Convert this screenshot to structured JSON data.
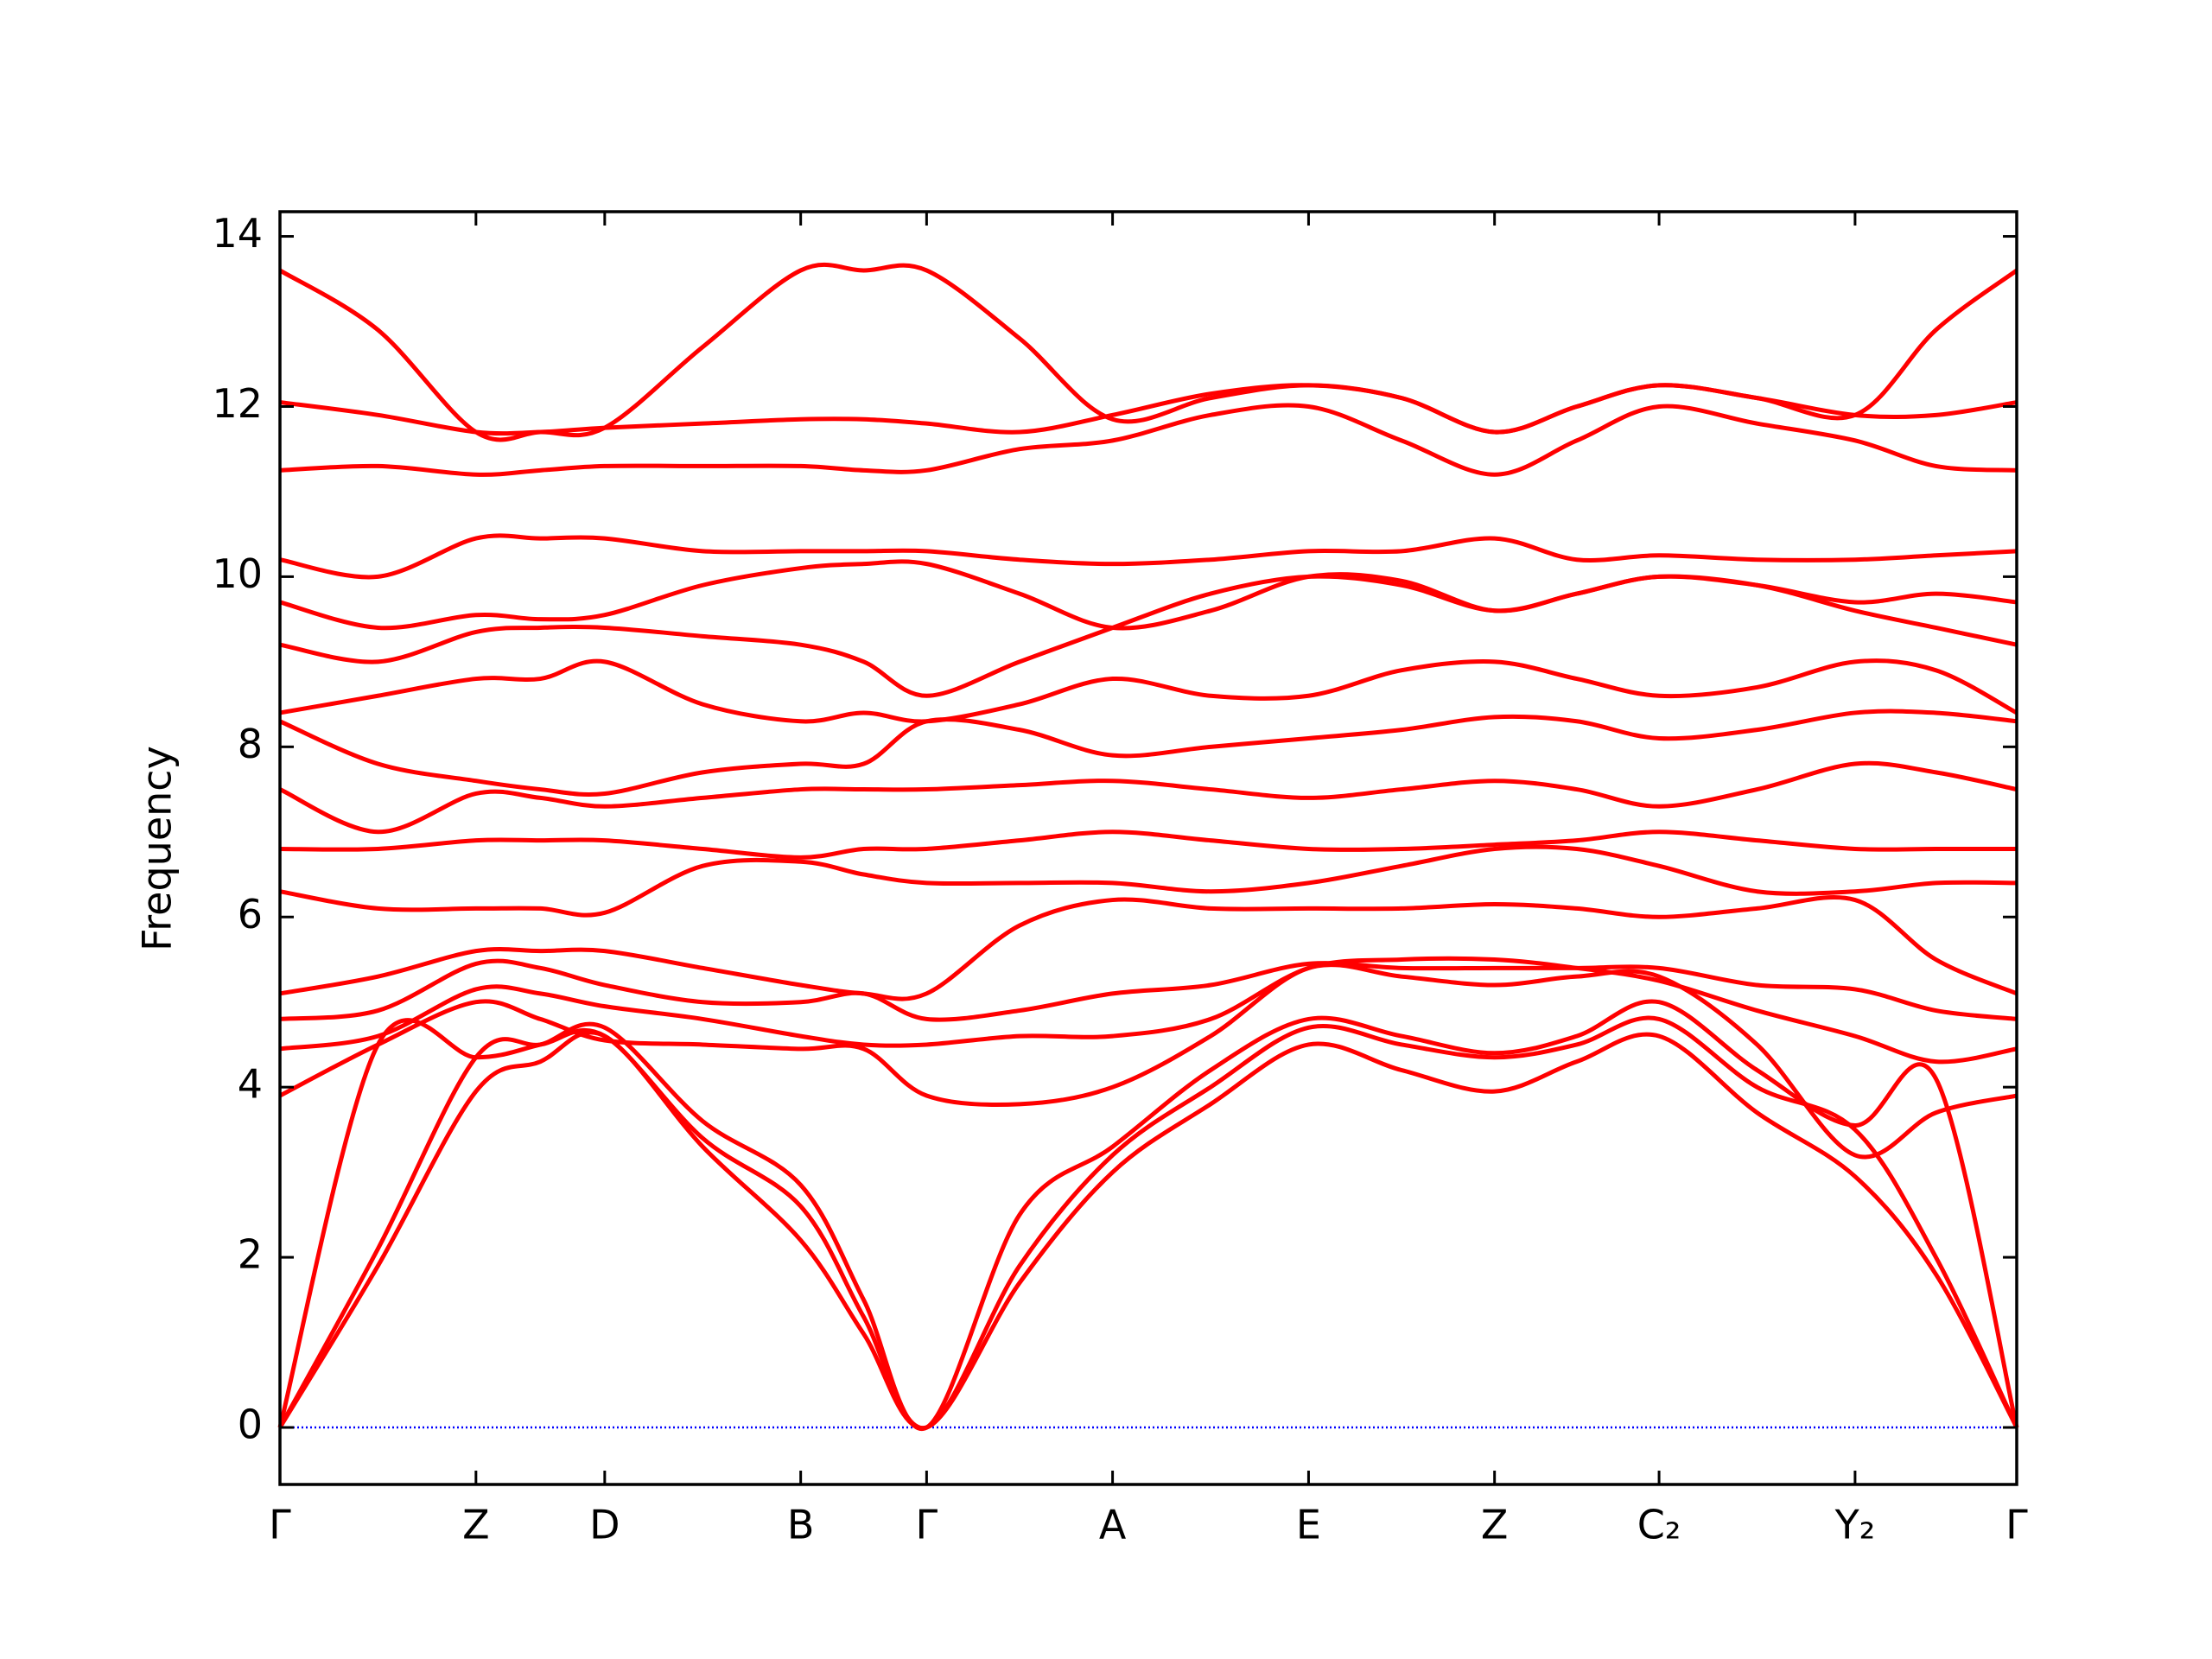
{
  "chart_data": {
    "type": "band_structure",
    "y_label": "Frequency",
    "color": "#ff0000",
    "zero_line": {
      "value": 0,
      "color": "#0000ff"
    },
    "xlim": [
      0,
      1.214
    ],
    "ylim": [
      -0.67,
      14.29
    ],
    "yticks": [
      0,
      2,
      4,
      6,
      8,
      10,
      12,
      14
    ],
    "xticks": [
      {
        "value": 0,
        "label": "Γ"
      },
      {
        "value": 0.137,
        "label": "Z"
      },
      {
        "value": 0.227,
        "label": "D"
      },
      {
        "value": 0.364,
        "label": "B"
      },
      {
        "value": 0.452,
        "label": "Γ"
      },
      {
        "value": 0.582,
        "label": "A"
      },
      {
        "value": 0.719,
        "label": "E"
      },
      {
        "value": 0.849,
        "label": "Z"
      },
      {
        "value": 0.964,
        "label": "C₂"
      },
      {
        "value": 1.101,
        "label": "Y₂"
      },
      {
        "value": 1.214,
        "label": "Γ"
      }
    ],
    "x": [
      0,
      0.0685,
      0.137,
      0.182,
      0.227,
      0.2955,
      0.364,
      0.408,
      0.452,
      0.517,
      0.582,
      0.6505,
      0.719,
      0.784,
      0.849,
      0.9065,
      0.964,
      1.0325,
      1.101,
      1.1575,
      1.214
    ],
    "bands": [
      [
        0,
        1.9,
        3.95,
        4.3,
        4.6,
        3.3,
        2.2,
        1.1,
        0,
        1.7,
        3.0,
        3.8,
        4.5,
        4.2,
        3.95,
        4.3,
        4.6,
        3.7,
        2.95,
        1.8,
        0
      ],
      [
        0,
        2.1,
        4.35,
        4.5,
        4.6,
        3.4,
        2.6,
        1.3,
        0,
        1.9,
        3.2,
        4.0,
        4.7,
        4.5,
        4.35,
        4.5,
        4.8,
        4.0,
        3.5,
        2.0,
        0
      ],
      [
        0,
        4.5,
        4.35,
        4.5,
        4.7,
        3.6,
        2.85,
        1.5,
        0,
        2.5,
        3.3,
        4.2,
        4.8,
        4.6,
        4.4,
        4.6,
        5.0,
        4.2,
        3.55,
        4.1,
        0
      ],
      [
        3.9,
        4.5,
        5.0,
        4.8,
        4.55,
        4.5,
        4.45,
        4.45,
        3.9,
        3.8,
        4.0,
        4.6,
        5.4,
        5.3,
        5.2,
        5.3,
        5.3,
        4.5,
        3.2,
        3.7,
        3.9
      ],
      [
        4.45,
        4.6,
        5.15,
        5.1,
        4.95,
        4.8,
        4.6,
        4.5,
        4.5,
        4.6,
        4.6,
        4.8,
        5.4,
        5.5,
        5.5,
        5.4,
        5.25,
        4.9,
        4.6,
        4.3,
        4.45
      ],
      [
        4.8,
        4.9,
        5.45,
        5.4,
        5.2,
        5.0,
        5.0,
        5.1,
        4.8,
        4.9,
        5.1,
        5.2,
        5.45,
        5.4,
        5.4,
        5.4,
        5.4,
        5.2,
        5.15,
        4.9,
        4.8
      ],
      [
        5.1,
        5.3,
        5.6,
        5.6,
        5.6,
        5.4,
        5.2,
        5.1,
        5.1,
        5.9,
        6.2,
        6.1,
        6.1,
        6.1,
        6.15,
        6.1,
        6.0,
        6.1,
        6.2,
        5.5,
        5.1
      ],
      [
        6.3,
        6.1,
        6.1,
        6.1,
        6.05,
        6.6,
        6.65,
        6.5,
        6.4,
        6.4,
        6.4,
        6.3,
        6.4,
        6.6,
        6.8,
        6.8,
        6.6,
        6.3,
        6.3,
        6.4,
        6.4
      ],
      [
        6.8,
        6.8,
        6.9,
        6.9,
        6.9,
        6.8,
        6.7,
        6.8,
        6.8,
        6.9,
        7.0,
        6.9,
        6.8,
        6.8,
        6.85,
        6.9,
        7.0,
        6.9,
        6.8,
        6.8,
        6.8
      ],
      [
        7.5,
        7.0,
        7.45,
        7.4,
        7.3,
        7.4,
        7.5,
        7.5,
        7.5,
        7.55,
        7.6,
        7.5,
        7.4,
        7.5,
        7.6,
        7.5,
        7.3,
        7.5,
        7.8,
        7.7,
        7.5
      ],
      [
        8.3,
        7.8,
        7.6,
        7.5,
        7.45,
        7.7,
        7.8,
        7.8,
        8.3,
        8.2,
        7.9,
        8.0,
        8.1,
        8.2,
        8.35,
        8.3,
        8.1,
        8.2,
        8.4,
        8.4,
        8.3
      ],
      [
        8.4,
        8.6,
        8.8,
        8.8,
        9.0,
        8.5,
        8.3,
        8.4,
        8.3,
        8.5,
        8.8,
        8.6,
        8.6,
        8.9,
        9.0,
        8.8,
        8.6,
        8.7,
        9.0,
        8.9,
        8.4
      ],
      [
        9.2,
        9.0,
        9.35,
        9.4,
        9.4,
        9.3,
        9.2,
        9.0,
        8.6,
        9.0,
        9.4,
        9.8,
        10.0,
        9.9,
        9.6,
        9.8,
        10.0,
        9.9,
        9.6,
        9.4,
        9.2
      ],
      [
        9.7,
        9.4,
        9.55,
        9.5,
        9.55,
        9.9,
        10.1,
        10.15,
        10.15,
        9.8,
        9.4,
        9.6,
        10.0,
        9.95,
        9.6,
        9.8,
        10.0,
        9.9,
        9.7,
        9.8,
        9.7
      ],
      [
        10.2,
        10.0,
        10.45,
        10.45,
        10.45,
        10.3,
        10.3,
        10.3,
        10.3,
        10.2,
        10.15,
        10.2,
        10.3,
        10.3,
        10.45,
        10.2,
        10.25,
        10.2,
        10.2,
        10.25,
        10.3
      ],
      [
        11.25,
        11.3,
        11.2,
        11.25,
        11.3,
        11.3,
        11.3,
        11.25,
        11.25,
        11.5,
        11.6,
        11.9,
        12.0,
        11.6,
        11.2,
        11.6,
        12.0,
        11.8,
        11.6,
        11.3,
        11.25
      ],
      [
        12.05,
        11.9,
        11.7,
        11.7,
        11.75,
        11.8,
        11.85,
        11.85,
        11.8,
        11.7,
        11.9,
        12.15,
        12.25,
        12.1,
        11.7,
        12.0,
        12.25,
        12.1,
        11.9,
        11.9,
        12.05
      ],
      [
        13.6,
        12.9,
        11.7,
        11.7,
        11.75,
        12.7,
        13.6,
        13.6,
        13.6,
        12.8,
        11.85,
        12.1,
        12.25,
        12.1,
        11.7,
        12.0,
        12.25,
        12.1,
        11.9,
        12.9,
        13.6
      ]
    ]
  }
}
